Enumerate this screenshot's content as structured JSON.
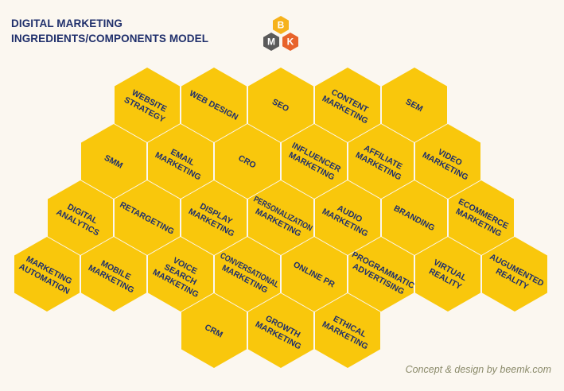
{
  "header": {
    "title_line1": "DIGITAL MARKETING",
    "title_line2": "INGREDIENTS/COMPONENTS MODEL"
  },
  "logo": {
    "letters": [
      "B",
      "M",
      "K"
    ],
    "colors": {
      "top": "#f6b21b",
      "left": "#5a5a5a",
      "right": "#e8632b"
    }
  },
  "credit": "Concept & design by beemk.com",
  "colors": {
    "hex_fill": "#f9c70c",
    "label_text": "#1f2f6b",
    "background": "#fbf7f0"
  },
  "rows": [
    [
      {
        "lines": [
          "WEBSITE",
          "STRATEGY"
        ]
      },
      {
        "lines": [
          "WEB DESIGN"
        ]
      },
      {
        "lines": [
          "SEO"
        ]
      },
      {
        "lines": [
          "CONTENT",
          "MARKETING"
        ]
      },
      {
        "lines": [
          "SEM"
        ]
      }
    ],
    [
      {
        "lines": [
          "SMM"
        ]
      },
      {
        "lines": [
          "EMAIL",
          "MARKETING"
        ]
      },
      {
        "lines": [
          "CRO"
        ]
      },
      {
        "lines": [
          "INFLUENCER",
          "MARKETING"
        ]
      },
      {
        "lines": [
          "AFFILIATE",
          "MARKETING"
        ]
      },
      {
        "lines": [
          "VIDEO",
          "MARKETING"
        ]
      }
    ],
    [
      {
        "lines": [
          "DIGITAL",
          "ANALYTICS"
        ]
      },
      {
        "lines": [
          "RETARGETING"
        ]
      },
      {
        "lines": [
          "DISPLAY",
          "MARKETING"
        ]
      },
      {
        "lines": [
          "PERSONALIZATION",
          "MARKETING"
        ]
      },
      {
        "lines": [
          "AUDIO",
          "MARKETING"
        ]
      },
      {
        "lines": [
          "BRANDING"
        ]
      },
      {
        "lines": [
          "ECOMMERCE",
          "MARKETING"
        ]
      }
    ],
    [
      {
        "lines": [
          "MARKETING",
          "AUTOMATION"
        ]
      },
      {
        "lines": [
          "MOBILE",
          "MARKETING"
        ]
      },
      {
        "lines": [
          "VOICE",
          "SEARCH",
          "MARKETING"
        ]
      },
      {
        "lines": [
          "CONVERSATIONAL",
          "MARKETING"
        ]
      },
      {
        "lines": [
          "ONLINE PR"
        ]
      },
      {
        "lines": [
          "PROGRAMMATIC",
          "ADVERTISING"
        ]
      },
      {
        "lines": [
          "VIRTUAL",
          "REALITY"
        ]
      },
      {
        "lines": [
          "AUGUMENTED",
          "REALITY"
        ]
      }
    ],
    [
      {
        "lines": [
          "CRM"
        ]
      },
      {
        "lines": [
          "GROWTH",
          "MARKETING"
        ]
      },
      {
        "lines": [
          "ETHICAL",
          "MARKETING"
        ]
      }
    ]
  ]
}
